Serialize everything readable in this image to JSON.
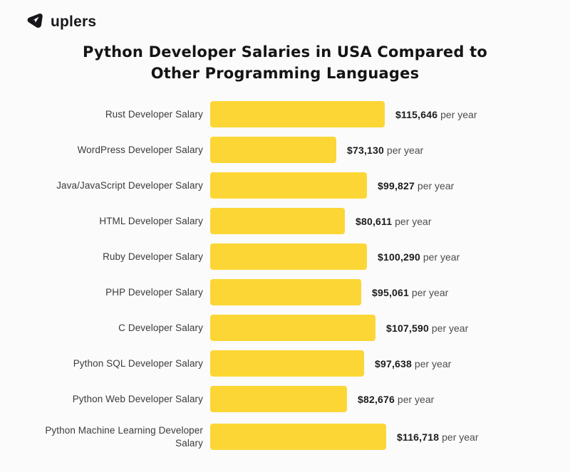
{
  "brand": {
    "name": "uplers",
    "logo_icon": "paper-plane-triangle",
    "logo_color": "#17171b"
  },
  "title": {
    "line1": "Python Developer Salaries in USA Compared to",
    "line2": "Other Programming Languages"
  },
  "chart_data": {
    "type": "bar",
    "orientation": "horizontal",
    "title": "Python Developer Salaries in USA Compared to Other Programming Languages",
    "categories": [
      "Rust Developer Salary",
      "WordPress Developer Salary",
      "Java/JavaScript Developer Salary",
      "HTML Developer Salary",
      "Ruby Developer Salary",
      "PHP Developer Salary",
      "C Developer Salary",
      "Python SQL Developer Salary",
      "Python Web Developer Salary",
      "Python Machine Learning Developer Salary"
    ],
    "values": [
      115646,
      73130,
      99827,
      80611,
      100290,
      95061,
      107590,
      97638,
      82676,
      116718
    ],
    "value_labels": [
      "$115,646",
      "$73,130",
      "$99,827",
      "$80,611",
      "$100,290",
      "$95,061",
      "$107,590",
      "$97,638",
      "$82,676",
      "$116,718"
    ],
    "value_suffix": "per year",
    "bar_color": "#FCD635",
    "xlim": [
      0,
      116718
    ],
    "grid": false,
    "legend": false
  },
  "colors": {
    "background": "#fbfbfb",
    "bar": "#FCD635",
    "title_text": "#141414",
    "label_text": "#3b3b3b",
    "value_text": "#1c1c1c",
    "suffix_text": "#4d4d4d"
  }
}
